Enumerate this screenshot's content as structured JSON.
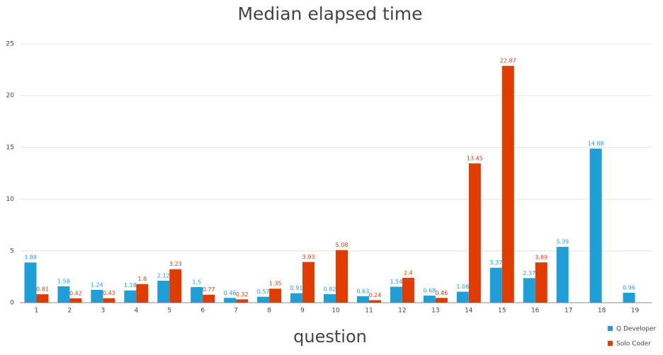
{
  "chart_data": {
    "type": "bar",
    "title": "Median elapsed time",
    "x_label": "question",
    "categories": [
      "1",
      "2",
      "3",
      "4",
      "5",
      "6",
      "7",
      "8",
      "9",
      "10",
      "11",
      "12",
      "13",
      "14",
      "15",
      "16",
      "17",
      "18",
      "19"
    ],
    "series": [
      {
        "name": "Q Developer",
        "color": "#1f9fd8",
        "values": [
          3.88,
          1.58,
          1.24,
          1.18,
          2.12,
          1.5,
          0.46,
          0.57,
          0.91,
          0.82,
          0.63,
          1.54,
          0.68,
          1.06,
          3.37,
          2.37,
          5.39,
          14.88,
          0.96
        ]
      },
      {
        "name": "Solo Coder",
        "color": "#e03c00",
        "values": [
          0.81,
          0.42,
          0.43,
          1.8,
          3.23,
          0.77,
          0.32,
          1.35,
          3.93,
          5.08,
          0.24,
          2.4,
          0.46,
          13.45,
          22.87,
          3.89,
          null,
          null,
          null
        ]
      }
    ],
    "ylim": [
      0,
      25
    ],
    "yticks": [
      0,
      5,
      10,
      15,
      20,
      25
    ],
    "grid": true,
    "legend": "bottom-right"
  }
}
